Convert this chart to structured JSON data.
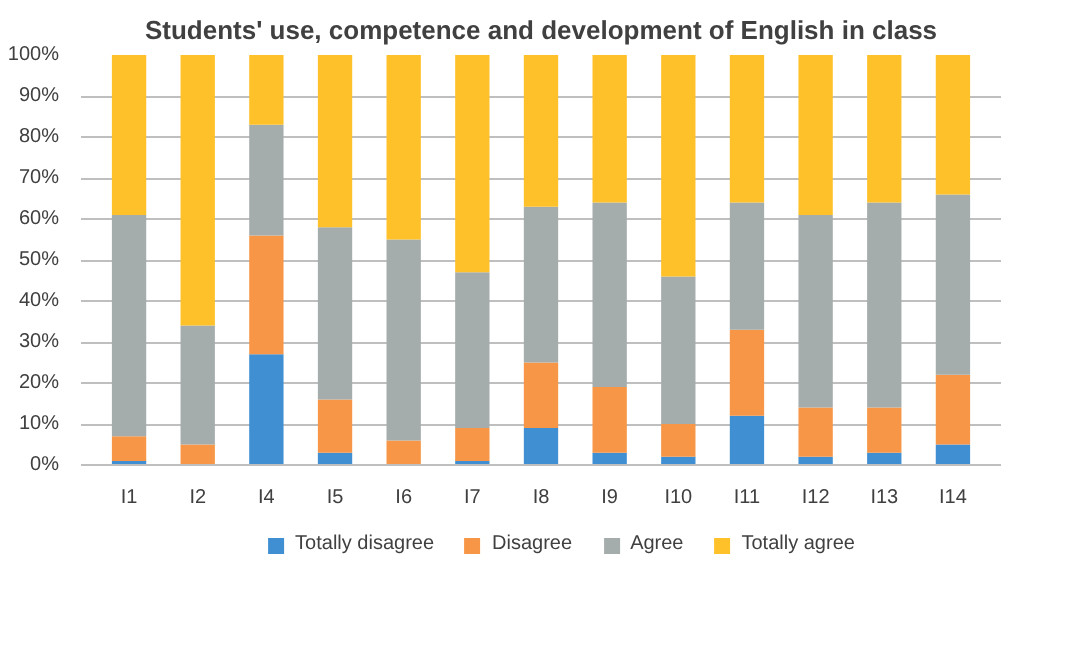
{
  "chart_data": {
    "type": "bar",
    "title": "Students' use, competence and development of English in class",
    "stacked": true,
    "categories": [
      "I1",
      "I2",
      "I4",
      "I5",
      "I6",
      "I7",
      "I8",
      "I9",
      "I10",
      "I11",
      "I12",
      "I13",
      "I14"
    ],
    "series": [
      {
        "name": "Totally disagree",
        "color": "#3f8fd2",
        "values": [
          1,
          0,
          27,
          3,
          0,
          1,
          9,
          3,
          2,
          12,
          2,
          3,
          5
        ]
      },
      {
        "name": "Disagree",
        "color": "#f79646",
        "values": [
          6,
          5,
          29,
          13,
          6,
          8,
          16,
          16,
          8,
          21,
          12,
          11,
          17
        ]
      },
      {
        "name": "Agree",
        "color": "#a5acac",
        "values": [
          54,
          29,
          27,
          42,
          49,
          38,
          38,
          45,
          36,
          31,
          47,
          50,
          44
        ]
      },
      {
        "name": "Totally agree",
        "color": "#ffc12a",
        "values": [
          39,
          66,
          17,
          42,
          45,
          53,
          37,
          36,
          54,
          36,
          39,
          36,
          34
        ]
      }
    ],
    "ylim": [
      0,
      100
    ],
    "yticks": [
      {
        "value": 0,
        "label": "0%"
      },
      {
        "value": 10,
        "label": "10%"
      },
      {
        "value": 20,
        "label": "20%"
      },
      {
        "value": 30,
        "label": "30%"
      },
      {
        "value": 40,
        "label": "40%"
      },
      {
        "value": 50,
        "label": "50%"
      },
      {
        "value": 60,
        "label": "60%"
      },
      {
        "value": 70,
        "label": "70%"
      },
      {
        "value": 80,
        "label": "80%"
      },
      {
        "value": 90,
        "label": "90%"
      },
      {
        "value": 100,
        "label": "100%"
      }
    ],
    "grid": "y",
    "legend": "bottom"
  }
}
